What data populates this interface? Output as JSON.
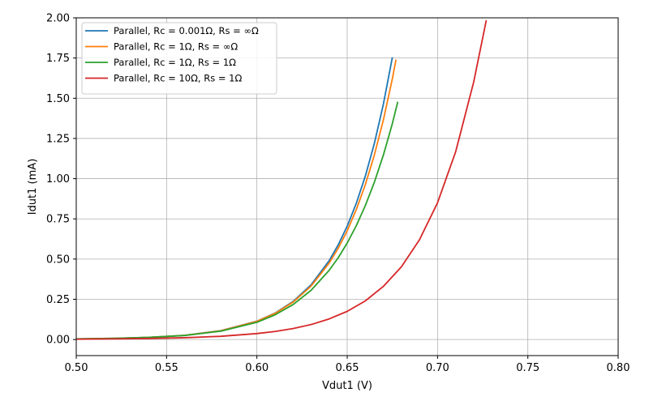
{
  "chart_data": {
    "type": "line",
    "xlabel": "Vdut1 (V)",
    "ylabel": "Idut1 (mA)",
    "xlim": [
      0.5,
      0.8
    ],
    "ylim": [
      -0.1,
      2.0
    ],
    "xticks": [
      0.5,
      0.55,
      0.6,
      0.65,
      0.7,
      0.75,
      0.8
    ],
    "xtick_labels": [
      "0.50",
      "0.55",
      "0.60",
      "0.65",
      "0.70",
      "0.75",
      "0.80"
    ],
    "yticks": [
      0.0,
      0.25,
      0.5,
      0.75,
      1.0,
      1.25,
      1.5,
      1.75,
      2.0
    ],
    "ytick_labels": [
      "0.00",
      "0.25",
      "0.50",
      "0.75",
      "1.00",
      "1.25",
      "1.50",
      "1.75",
      "2.00"
    ],
    "grid": true,
    "legend_position": "top-left",
    "series": [
      {
        "name": "Parallel, Rc = 0.001Ω, Rs = ∞Ω",
        "color": "#1f77b4",
        "x": [
          0.5,
          0.52,
          0.54,
          0.56,
          0.58,
          0.6,
          0.61,
          0.62,
          0.63,
          0.64,
          0.645,
          0.65,
          0.655,
          0.66,
          0.665,
          0.67,
          0.675
        ],
        "y": [
          0.004,
          0.007,
          0.013,
          0.026,
          0.055,
          0.114,
          0.164,
          0.236,
          0.34,
          0.49,
          0.588,
          0.705,
          0.846,
          1.015,
          1.218,
          1.462,
          1.755
        ]
      },
      {
        "name": "Parallel, Rc = 1Ω, Rs = ∞Ω",
        "color": "#ff7f0e",
        "x": [
          0.5,
          0.52,
          0.54,
          0.56,
          0.58,
          0.6,
          0.61,
          0.62,
          0.63,
          0.64,
          0.645,
          0.65,
          0.655,
          0.66,
          0.665,
          0.67,
          0.675,
          0.677
        ],
        "y": [
          0.004,
          0.007,
          0.013,
          0.026,
          0.054,
          0.113,
          0.162,
          0.232,
          0.332,
          0.475,
          0.567,
          0.676,
          0.807,
          0.962,
          1.146,
          1.364,
          1.622,
          1.74
        ]
      },
      {
        "name": "Parallel, Rc = 1Ω, Rs = 1Ω",
        "color": "#2ca02c",
        "x": [
          0.5,
          0.52,
          0.54,
          0.56,
          0.58,
          0.6,
          0.61,
          0.62,
          0.63,
          0.64,
          0.645,
          0.65,
          0.655,
          0.66,
          0.665,
          0.67,
          0.675,
          0.678
        ],
        "y": [
          0.004,
          0.007,
          0.013,
          0.025,
          0.052,
          0.107,
          0.153,
          0.217,
          0.306,
          0.43,
          0.508,
          0.6,
          0.707,
          0.832,
          0.977,
          1.146,
          1.343,
          1.478
        ]
      },
      {
        "name": "Parallel, Rc = 10Ω, Rs = 1Ω",
        "color": "#d62728",
        "x": [
          0.5,
          0.52,
          0.54,
          0.56,
          0.58,
          0.6,
          0.61,
          0.62,
          0.63,
          0.64,
          0.65,
          0.66,
          0.67,
          0.68,
          0.69,
          0.7,
          0.71,
          0.72,
          0.727
        ],
        "y": [
          0.002,
          0.004,
          0.006,
          0.011,
          0.02,
          0.037,
          0.05,
          0.068,
          0.093,
          0.128,
          0.175,
          0.24,
          0.33,
          0.452,
          0.62,
          0.85,
          1.166,
          1.6,
          1.985
        ]
      }
    ]
  }
}
